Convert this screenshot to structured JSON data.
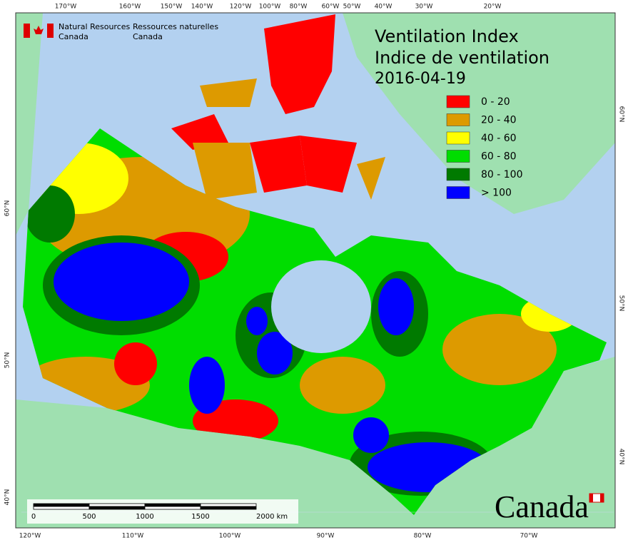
{
  "header": {
    "agency_en": [
      "Natural Resources",
      "Canada"
    ],
    "agency_fr": [
      "Ressources naturelles",
      "Canada"
    ],
    "title": [
      "Ventilation Index",
      "Indice de ventilation"
    ],
    "date": "2016-04-19"
  },
  "legend": [
    {
      "label": "0 - 20",
      "color": "#ff0000"
    },
    {
      "label": "20 - 40",
      "color": "#dd9a00"
    },
    {
      "label": "40 - 60",
      "color": "#ffff00"
    },
    {
      "label": "60 - 80",
      "color": "#00dd00"
    },
    {
      "label": "80 - 100",
      "color": "#007a00"
    },
    {
      "label": "> 100",
      "color": "#0000ff"
    }
  ],
  "graticule": {
    "top": [
      "170°W",
      "160°W",
      "150°W",
      "140°W",
      "120°W",
      "100°W",
      "80°W",
      "60°W",
      "50°W",
      "40°W",
      "30°W",
      "20°W"
    ],
    "bottom": [
      "120°W",
      "110°W",
      "100°W",
      "90°W",
      "80°W",
      "70°W"
    ],
    "left": [
      "60°N",
      "50°N",
      "40°N"
    ],
    "right": [
      "60°N",
      "50°N",
      "40°N"
    ]
  },
  "scale_bar": [
    "0",
    "500",
    "1000",
    "1500",
    "2000 km"
  ],
  "wordmark": "Canada"
}
